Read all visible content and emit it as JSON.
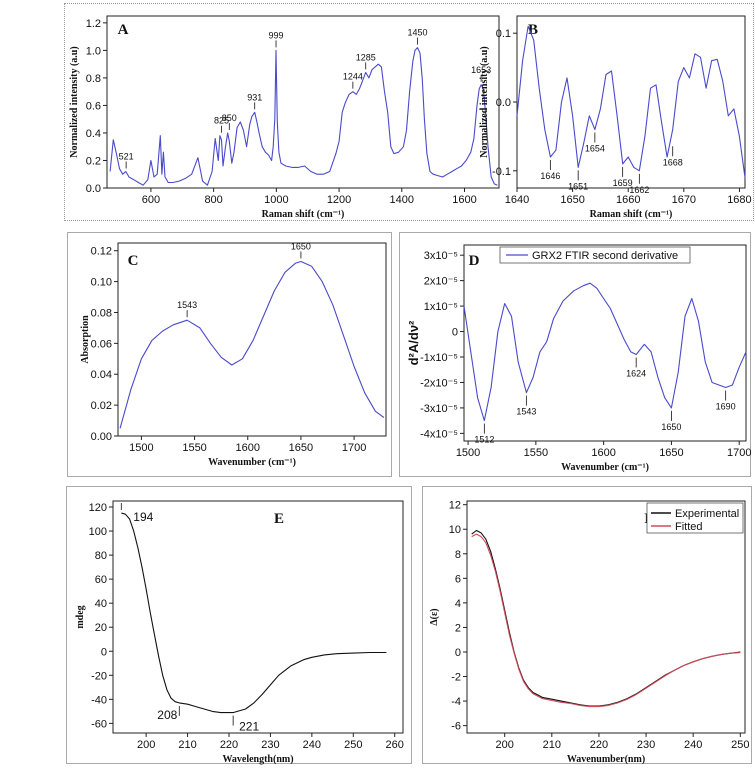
{
  "chart_data": [
    {
      "id": "A",
      "type": "line",
      "panel_label": "A",
      "xlabel": "Raman shift (cm⁻¹)",
      "ylabel": "Normalized intensity (a.u)",
      "xlim": [
        460,
        1710
      ],
      "ylim": [
        0,
        1.25
      ],
      "xticks": [
        600,
        800,
        1000,
        1200,
        1400,
        1600
      ],
      "yticks": [
        0.0,
        0.2,
        0.4,
        0.6,
        0.8,
        1.0,
        1.2
      ],
      "ytick_decimals": 1,
      "color": "#4a4acc",
      "series": [
        {
          "x": [
            470,
            480,
            490,
            500,
            510,
            520,
            530,
            545,
            560,
            575,
            590,
            600,
            610,
            620,
            630,
            635,
            640,
            645,
            655,
            670,
            690,
            710,
            730,
            750,
            765,
            780,
            795,
            805,
            815,
            820,
            825,
            830,
            838,
            845,
            850,
            858,
            865,
            875,
            885,
            895,
            905,
            915,
            922,
            931,
            938,
            945,
            955,
            965,
            975,
            985,
            990,
            995,
            999,
            1003,
            1008,
            1015,
            1030,
            1050,
            1070,
            1090,
            1110,
            1130,
            1150,
            1170,
            1190,
            1200,
            1210,
            1220,
            1232,
            1244,
            1255,
            1265,
            1275,
            1285,
            1295,
            1305,
            1315,
            1325,
            1335,
            1345,
            1355,
            1365,
            1375,
            1390,
            1405,
            1415,
            1425,
            1435,
            1442,
            1450,
            1458,
            1465,
            1472,
            1480,
            1490,
            1500,
            1515,
            1530,
            1545,
            1560,
            1575,
            1590,
            1605,
            1620,
            1630,
            1640,
            1647,
            1653,
            1660,
            1667,
            1675,
            1685,
            1695,
            1705
          ],
          "y": [
            0.12,
            0.35,
            0.25,
            0.14,
            0.1,
            0.12,
            0.08,
            0.06,
            0.04,
            0.02,
            0.06,
            0.2,
            0.08,
            0.1,
            0.38,
            0.1,
            0.26,
            0.08,
            0.04,
            0.04,
            0.05,
            0.07,
            0.1,
            0.22,
            0.05,
            0.02,
            0.12,
            0.36,
            0.2,
            0.38,
            0.35,
            0.16,
            0.3,
            0.4,
            0.34,
            0.18,
            0.26,
            0.44,
            0.48,
            0.42,
            0.3,
            0.46,
            0.52,
            0.55,
            0.48,
            0.4,
            0.3,
            0.26,
            0.24,
            0.2,
            0.3,
            0.5,
            1.0,
            0.48,
            0.26,
            0.18,
            0.16,
            0.15,
            0.15,
            0.16,
            0.12,
            0.1,
            0.1,
            0.12,
            0.25,
            0.34,
            0.55,
            0.62,
            0.68,
            0.7,
            0.68,
            0.72,
            0.78,
            0.84,
            0.8,
            0.86,
            0.88,
            0.9,
            0.88,
            0.7,
            0.55,
            0.3,
            0.25,
            0.26,
            0.3,
            0.42,
            0.7,
            0.92,
            1.0,
            1.02,
            0.98,
            0.8,
            0.5,
            0.25,
            0.12,
            0.1,
            0.09,
            0.08,
            0.1,
            0.12,
            0.14,
            0.16,
            0.2,
            0.26,
            0.36,
            0.6,
            0.72,
            0.75,
            0.72,
            0.55,
            0.3,
            0.08,
            0.03,
            0.02
          ]
        }
      ],
      "annotations": [
        {
          "label": "521",
          "x": 521,
          "y": 0.12
        },
        {
          "label": "825",
          "x": 825,
          "y": 0.38
        },
        {
          "label": "850",
          "x": 850,
          "y": 0.4
        },
        {
          "label": "931",
          "x": 931,
          "y": 0.55
        },
        {
          "label": "999",
          "x": 999,
          "y": 1.0
        },
        {
          "label": "1244",
          "x": 1244,
          "y": 0.7
        },
        {
          "label": "1285",
          "x": 1285,
          "y": 0.84
        },
        {
          "label": "1450",
          "x": 1450,
          "y": 1.02
        },
        {
          "label": "1653",
          "x": 1653,
          "y": 0.75
        }
      ]
    },
    {
      "id": "B",
      "type": "line",
      "panel_label": "B",
      "xlabel": "Raman shift (cm⁻¹)",
      "ylabel": "Normalized intensity (a.u)",
      "xlim": [
        1640,
        1681
      ],
      "ylim": [
        -0.125,
        0.125
      ],
      "xticks": [
        1640,
        1650,
        1660,
        1670,
        1680
      ],
      "yticks": [
        -0.1,
        0.0,
        0.1
      ],
      "ytick_decimals": 1,
      "color": "#4a4acc",
      "series": [
        {
          "x": [
            1640,
            1641,
            1642,
            1643,
            1644,
            1645,
            1646,
            1647,
            1648,
            1649,
            1650,
            1651,
            1652,
            1653,
            1654,
            1655,
            1656,
            1657,
            1658,
            1659,
            1660,
            1661,
            1662,
            1663,
            1664,
            1665,
            1666,
            1667,
            1668,
            1669,
            1670,
            1671,
            1672,
            1673,
            1674,
            1675,
            1676,
            1677,
            1678,
            1679,
            1680,
            1681
          ],
          "y": [
            -0.02,
            0.06,
            0.11,
            0.09,
            0.02,
            -0.04,
            -0.08,
            -0.07,
            0.0,
            0.035,
            -0.02,
            -0.095,
            -0.06,
            -0.02,
            -0.04,
            -0.01,
            0.04,
            0.045,
            -0.02,
            -0.09,
            -0.08,
            -0.095,
            -0.1,
            -0.05,
            0.02,
            0.025,
            -0.03,
            -0.08,
            -0.04,
            0.03,
            0.05,
            0.035,
            0.07,
            0.065,
            0.02,
            0.06,
            0.062,
            0.03,
            -0.02,
            -0.01,
            -0.05,
            -0.11
          ]
        }
      ],
      "annotations": [
        {
          "label": "1646",
          "x": 1646,
          "y": -0.08
        },
        {
          "label": "1651",
          "x": 1651,
          "y": -0.095
        },
        {
          "label": "1654",
          "x": 1654,
          "y": -0.04
        },
        {
          "label": "1659",
          "x": 1659,
          "y": -0.09
        },
        {
          "label": "1662",
          "x": 1662,
          "y": -0.1
        },
        {
          "label": "1668",
          "x": 1668,
          "y": -0.06
        }
      ]
    },
    {
      "id": "C",
      "type": "line",
      "panel_label": "C",
      "xlabel": "Wavenumber (cm⁻¹)",
      "ylabel": "Absorption",
      "xlim": [
        1478,
        1730
      ],
      "ylim": [
        0,
        0.125
      ],
      "xticks": [
        1500,
        1550,
        1600,
        1650,
        1700
      ],
      "yticks": [
        0.0,
        0.02,
        0.04,
        0.06,
        0.08,
        0.1,
        0.12
      ],
      "ytick_decimals": 2,
      "color": "#4a4acc",
      "series": [
        {
          "x": [
            1480,
            1490,
            1500,
            1510,
            1520,
            1530,
            1543,
            1555,
            1565,
            1575,
            1585,
            1595,
            1605,
            1615,
            1625,
            1635,
            1645,
            1650,
            1660,
            1670,
            1680,
            1690,
            1700,
            1710,
            1720,
            1728
          ],
          "y": [
            0.005,
            0.03,
            0.05,
            0.062,
            0.068,
            0.072,
            0.075,
            0.07,
            0.06,
            0.051,
            0.046,
            0.05,
            0.062,
            0.078,
            0.094,
            0.106,
            0.112,
            0.113,
            0.11,
            0.1,
            0.085,
            0.065,
            0.045,
            0.028,
            0.016,
            0.012
          ]
        }
      ],
      "annotations": [
        {
          "label": "1543",
          "x": 1543,
          "y": 0.075
        },
        {
          "label": "1650",
          "x": 1650,
          "y": 0.113
        }
      ]
    },
    {
      "id": "D",
      "type": "line",
      "panel_label": "D",
      "xlabel": "Wavenumber (cm⁻¹)",
      "ylabel": "d²A/dν²",
      "xlim": [
        1497,
        1705
      ],
      "ylim": [
        -4.3,
        3.4
      ],
      "xticks": [
        1500,
        1550,
        1600,
        1650,
        1700
      ],
      "yticks": [
        -4,
        -3,
        -2,
        -1,
        0,
        1,
        2,
        3
      ],
      "ytick_labels": [
        "-4x10⁻⁵",
        "-3x10⁻⁵",
        "-2x10⁻⁵",
        "-1x10⁻⁵",
        "0",
        "1x10⁻⁵",
        "2x10⁻⁵",
        "3x10⁻⁵"
      ],
      "color": "#4a4acc",
      "legend": "GRX2 FTIR second derivative",
      "series": [
        {
          "name": "GRX2 FTIR second derivative",
          "x": [
            1497,
            1502,
            1507,
            1512,
            1517,
            1522,
            1527,
            1532,
            1537,
            1543,
            1548,
            1553,
            1558,
            1563,
            1570,
            1578,
            1585,
            1590,
            1595,
            1600,
            1605,
            1610,
            1615,
            1620,
            1624,
            1630,
            1635,
            1640,
            1645,
            1650,
            1655,
            1660,
            1665,
            1670,
            1675,
            1680,
            1685,
            1690,
            1695,
            1700,
            1705
          ],
          "y": [
            1.0,
            -0.8,
            -2.6,
            -3.5,
            -2.2,
            0.0,
            1.1,
            0.6,
            -1.2,
            -2.4,
            -1.8,
            -0.8,
            -0.4,
            0.5,
            1.2,
            1.6,
            1.8,
            1.9,
            1.7,
            1.3,
            0.9,
            0.3,
            -0.3,
            -0.8,
            -0.9,
            -0.5,
            -0.8,
            -1.8,
            -2.6,
            -3.0,
            -1.6,
            0.6,
            1.3,
            0.4,
            -1.2,
            -2.0,
            -2.1,
            -2.2,
            -2.1,
            -1.4,
            -0.8
          ]
        }
      ],
      "annotations": [
        {
          "label": "1512",
          "x": 1512,
          "y": -3.5
        },
        {
          "label": "1543",
          "x": 1543,
          "y": -2.4
        },
        {
          "label": "1624",
          "x": 1624,
          "y": -0.9
        },
        {
          "label": "1650",
          "x": 1650,
          "y": -3.0
        },
        {
          "label": "1690",
          "x": 1690,
          "y": -2.2
        }
      ]
    },
    {
      "id": "E",
      "type": "line",
      "panel_label": "E",
      "xlabel": "Wavelength(nm)",
      "ylabel": "mdeg",
      "xlim": [
        192,
        262
      ],
      "ylim": [
        -68,
        125
      ],
      "xticks": [
        200,
        210,
        220,
        230,
        240,
        250,
        260
      ],
      "yticks": [
        -60,
        -40,
        -20,
        0,
        20,
        40,
        60,
        80,
        100,
        120
      ],
      "ytick_decimals": 0,
      "color": "#111111",
      "series": [
        {
          "x": [
            194,
            195,
            196,
            197,
            198,
            199,
            200,
            201,
            202,
            203,
            204,
            205,
            206,
            207,
            208,
            210,
            212,
            214,
            216,
            218,
            220,
            221,
            222,
            224,
            226,
            228,
            230,
            232,
            235,
            238,
            240,
            243,
            246,
            250,
            254,
            258
          ],
          "y": [
            115,
            114,
            110,
            100,
            86,
            70,
            52,
            32,
            14,
            -4,
            -20,
            -32,
            -39,
            -42,
            -43,
            -44,
            -46,
            -48,
            -50,
            -51,
            -51,
            -51,
            -50,
            -48,
            -43,
            -36,
            -28,
            -20,
            -12,
            -7,
            -5,
            -3,
            -2,
            -1.5,
            -1,
            -1
          ]
        }
      ],
      "annotations": [
        {
          "label": "194",
          "x": 194,
          "y": 115
        },
        {
          "label": "208",
          "x": 208,
          "y": -43
        },
        {
          "label": "221",
          "x": 221,
          "y": -51
        }
      ]
    },
    {
      "id": "F",
      "type": "line",
      "panel_label": "F",
      "xlabel": "Wavenumber(nm)",
      "ylabel": "Δ(ε)",
      "xlim": [
        192,
        251
      ],
      "ylim": [
        -6.6,
        12.3
      ],
      "xticks": [
        200,
        210,
        220,
        230,
        240,
        250
      ],
      "yticks": [
        -6,
        -4,
        -2,
        0,
        2,
        4,
        6,
        8,
        10,
        12
      ],
      "ytick_decimals": 0,
      "legend_position": "top-right",
      "series": [
        {
          "name": "Experimental",
          "color": "#111111",
          "x": [
            193,
            194,
            195,
            196,
            197,
            198,
            199,
            200,
            201,
            202,
            203,
            204,
            205,
            206,
            207,
            208,
            210,
            212,
            214,
            216,
            218,
            220,
            222,
            224,
            226,
            228,
            230,
            232,
            234,
            236,
            238,
            240,
            242,
            244,
            246,
            248,
            250
          ],
          "y": [
            9.6,
            9.9,
            9.7,
            9.2,
            8.2,
            6.8,
            5.2,
            3.4,
            1.6,
            0.0,
            -1.3,
            -2.3,
            -2.9,
            -3.3,
            -3.5,
            -3.7,
            -3.85,
            -4.0,
            -4.15,
            -4.3,
            -4.4,
            -4.4,
            -4.3,
            -4.1,
            -3.8,
            -3.4,
            -2.9,
            -2.4,
            -1.9,
            -1.5,
            -1.1,
            -0.8,
            -0.55,
            -0.35,
            -0.2,
            -0.1,
            0.0
          ]
        },
        {
          "name": "Fitted",
          "color": "#d04a5a",
          "x": [
            193,
            194,
            195,
            196,
            197,
            198,
            199,
            200,
            201,
            202,
            203,
            204,
            205,
            206,
            207,
            208,
            210,
            212,
            214,
            216,
            218,
            220,
            222,
            224,
            226,
            228,
            230,
            232,
            234,
            236,
            238,
            240,
            242,
            244,
            246,
            248,
            250
          ],
          "y": [
            9.4,
            9.6,
            9.4,
            8.9,
            7.9,
            6.6,
            5.0,
            3.2,
            1.4,
            -0.1,
            -1.4,
            -2.4,
            -3.0,
            -3.4,
            -3.6,
            -3.8,
            -3.95,
            -4.1,
            -4.2,
            -4.35,
            -4.45,
            -4.45,
            -4.35,
            -4.15,
            -3.85,
            -3.45,
            -2.95,
            -2.45,
            -1.95,
            -1.5,
            -1.1,
            -0.8,
            -0.55,
            -0.35,
            -0.2,
            -0.1,
            -0.05
          ]
        }
      ]
    }
  ]
}
